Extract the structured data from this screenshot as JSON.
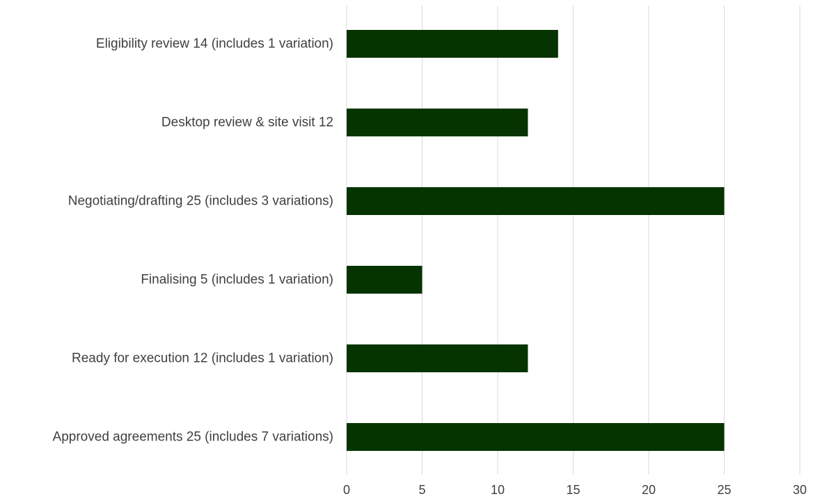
{
  "chart_data": {
    "type": "bar",
    "orientation": "horizontal",
    "categories": [
      "Eligibility review 14 (includes 1 variation)",
      "Desktop review & site visit 12",
      "Negotiating/drafting 25 (includes 3 variations)",
      "Finalising 5 (includes 1 variation)",
      "Ready for execution 12 (includes 1 variation)",
      "Approved agreements 25 (includes 7 variations)"
    ],
    "values": [
      14,
      12,
      25,
      5,
      12,
      25
    ],
    "xlim": [
      0,
      30
    ],
    "x_ticks": [
      "0",
      "5",
      "10",
      "15",
      "20",
      "25",
      "30"
    ],
    "grid": "vertical",
    "bar_color": "#063400",
    "title": "",
    "xlabel": "",
    "ylabel": ""
  }
}
